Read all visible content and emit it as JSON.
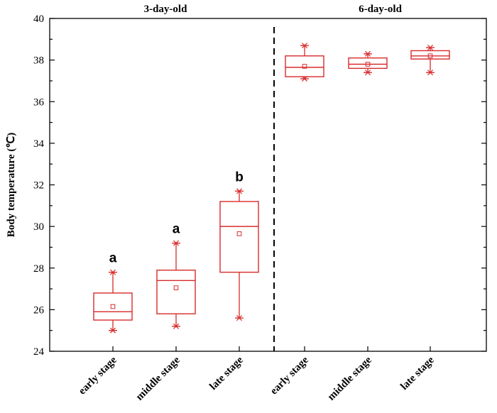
{
  "chart_data": {
    "type": "box",
    "ylabel": "Body temperature (℃)",
    "ylim": [
      24,
      40
    ],
    "yticks": [
      24,
      26,
      28,
      30,
      32,
      34,
      36,
      38,
      40
    ],
    "colors": {
      "box": "#d92b2b",
      "axis": "#000000",
      "divider": "#000000"
    },
    "groups": [
      {
        "title": "3-day-old",
        "items": [
          {
            "label": "early stage",
            "min": 25.0,
            "q1": 25.5,
            "median": 25.9,
            "mean": 26.15,
            "q3": 26.8,
            "max": 27.8,
            "sig": "a"
          },
          {
            "label": "middle stage",
            "min": 25.2,
            "q1": 25.8,
            "median": 27.4,
            "mean": 27.05,
            "q3": 27.9,
            "max": 29.2,
            "sig": "a"
          },
          {
            "label": "late stage",
            "min": 25.6,
            "q1": 27.8,
            "median": 30.0,
            "mean": 29.65,
            "q3": 31.2,
            "max": 31.7,
            "sig": "b"
          }
        ]
      },
      {
        "title": "6-day-old",
        "items": [
          {
            "label": "early stage",
            "min": 37.1,
            "q1": 37.2,
            "median": 37.65,
            "mean": 37.7,
            "q3": 38.2,
            "max": 38.7,
            "sig": ""
          },
          {
            "label": "middle stage",
            "min": 37.4,
            "q1": 37.6,
            "median": 37.8,
            "mean": 37.8,
            "q3": 38.1,
            "max": 38.3,
            "sig": ""
          },
          {
            "label": "late stage",
            "min": 37.4,
            "q1": 38.05,
            "median": 38.2,
            "mean": 38.2,
            "q3": 38.45,
            "max": 38.6,
            "sig": ""
          }
        ]
      }
    ]
  }
}
